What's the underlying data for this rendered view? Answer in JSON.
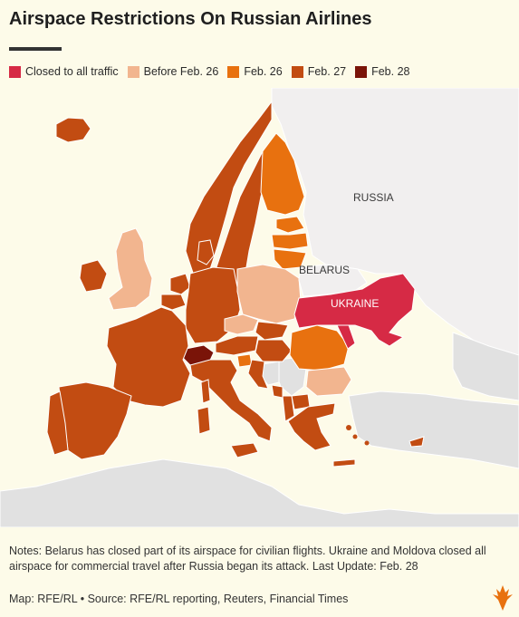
{
  "header": {
    "title": "Airspace Restrictions On Russian Airlines"
  },
  "legend": {
    "items": [
      {
        "label": "Closed to all traffic",
        "color": "#d62a45"
      },
      {
        "label": "Before Feb. 26",
        "color": "#f2b58f"
      },
      {
        "label": "Feb. 26",
        "color": "#e8710f"
      },
      {
        "label": "Feb. 27",
        "color": "#c24c12"
      },
      {
        "label": "Feb. 28",
        "color": "#7a1408"
      }
    ]
  },
  "map": {
    "labels": {
      "russia": "RUSSIA",
      "belarus": "BELARUS",
      "ukraine": "UKRAINE"
    },
    "colors": {
      "background_land": "#e1e1e1",
      "russia_land": "#f1efef",
      "sea": "#fdfbe9"
    }
  },
  "footer": {
    "notes": "Notes: Belarus has closed part of its airspace for civilian flights. Ukraine and Moldova closed all airspace for commercial travel after Russia began its attack. Last Update: Feb. 28",
    "credit": "Map: RFE/RL • Source: RFE/RL reporting, Reuters, Financial Times",
    "logo_icon": "rfe-rl-torch-logo"
  }
}
